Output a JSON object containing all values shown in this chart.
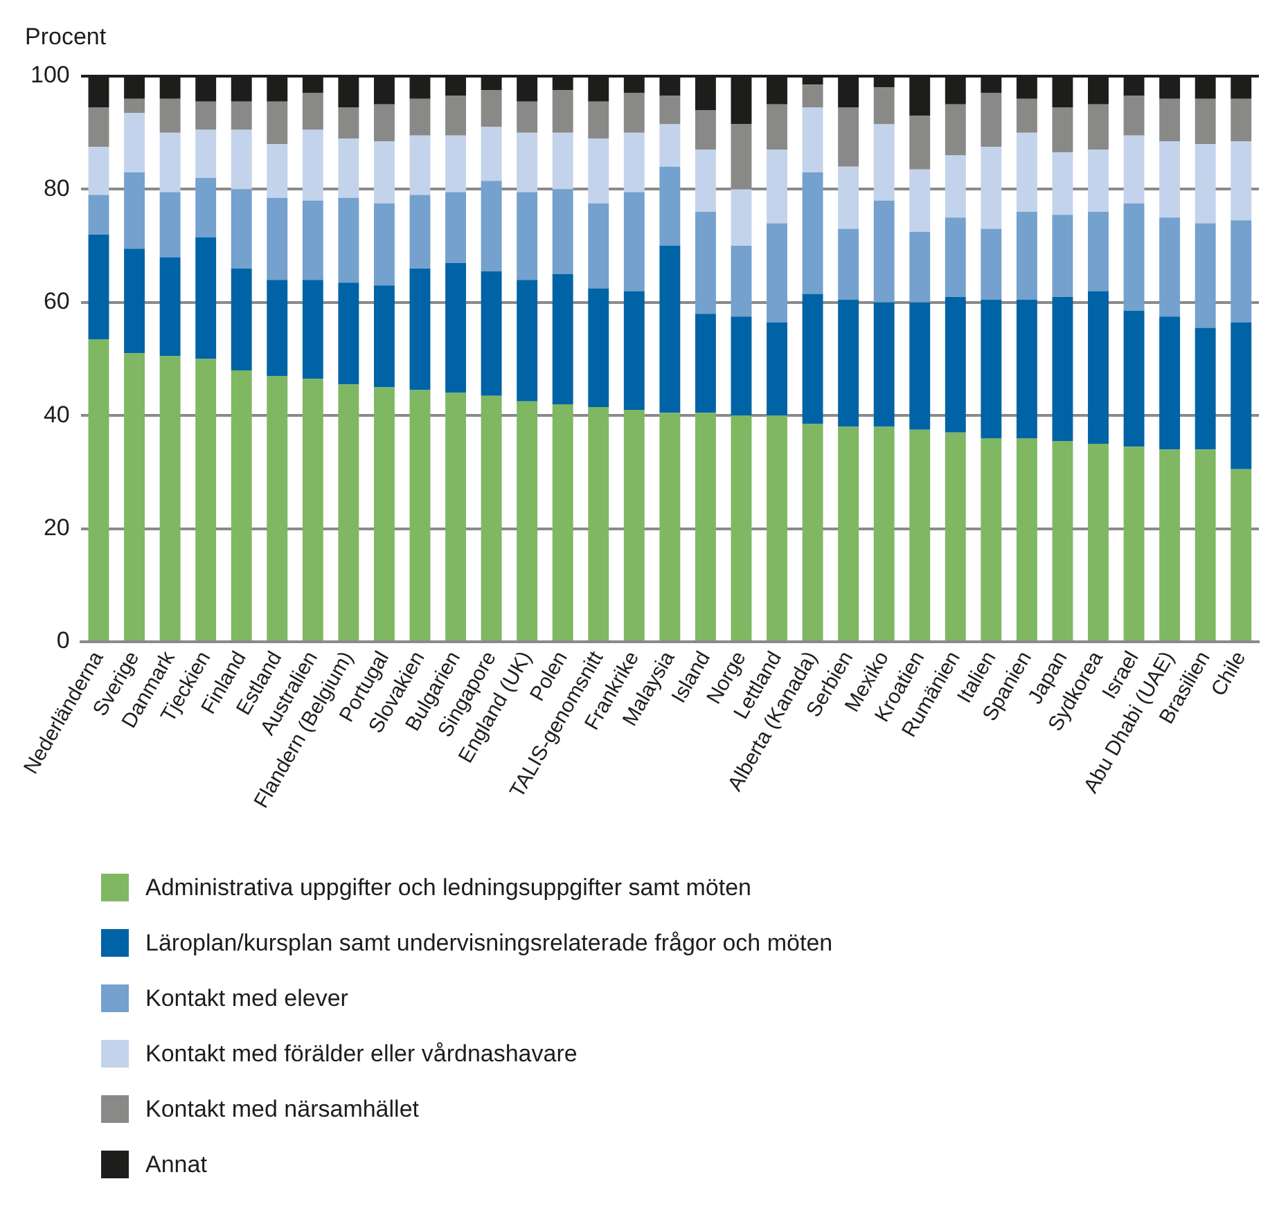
{
  "chart_data": {
    "type": "bar",
    "stacked": true,
    "ylabel": "Procent",
    "categories": [
      "Nederländerna",
      "Sverige",
      "Danmark",
      "Tjeckien",
      "Finland",
      "Estland",
      "Australien",
      "Flandern (Belgium)",
      "Portugal",
      "Slovakien",
      "Bulgarien",
      "Singapore",
      "England (UK)",
      "Polen",
      "TALIS-genomsnitt",
      "Frankrike",
      "Malaysia",
      "Island",
      "Norge",
      "Lettland",
      "Alberta (Kanada)",
      "Serbien",
      "Mexiko",
      "Kroatien",
      "Rumänien",
      "Italien",
      "Spanien",
      "Japan",
      "Sydkorea",
      "Israel",
      "Abu Dhabi (UAE)",
      "Brasilien",
      "Chile"
    ],
    "series": [
      {
        "name": "Administrativa uppgifter och ledningsuppgifter samt möten",
        "color": "#7fb762",
        "values": [
          53.5,
          51,
          50.5,
          50,
          48,
          47,
          46.5,
          45.5,
          45,
          44.5,
          44,
          43.5,
          42.5,
          42,
          41.5,
          41,
          40.5,
          40.5,
          40,
          40,
          38.5,
          38,
          38,
          37.5,
          37,
          36,
          36,
          35.5,
          35,
          34.5,
          34,
          34,
          30.5
        ]
      },
      {
        "name": "Läroplan/kursplan samt undervisningsrelaterade frågor och möten",
        "color": "#0063a6",
        "values": [
          18.5,
          18.5,
          17.5,
          21.5,
          18,
          17,
          17.5,
          18,
          18,
          21.5,
          23,
          22,
          21.5,
          23,
          21,
          21,
          29.5,
          17.5,
          17.5,
          16.5,
          23,
          22.5,
          22,
          22.5,
          24,
          24.5,
          24.5,
          25.5,
          27,
          24,
          23.5,
          21.5,
          26
        ]
      },
      {
        "name": "Kontakt med elever",
        "color": "#74a1cd",
        "values": [
          7,
          13.5,
          11.5,
          10.5,
          14,
          14.5,
          14,
          15,
          14.5,
          13,
          12.5,
          16,
          15.5,
          15,
          15,
          17.5,
          14,
          18,
          12.5,
          17.5,
          21.5,
          12.5,
          18,
          12.5,
          14,
          12.5,
          15.5,
          14.5,
          14,
          19,
          17.5,
          18.5,
          18
        ]
      },
      {
        "name": "Kontakt med förälder eller vårdnashavare",
        "color": "#c3d3ec",
        "values": [
          8.5,
          10.5,
          10.5,
          8.5,
          10.5,
          9.5,
          12.5,
          10.5,
          11,
          10.5,
          10,
          9.5,
          10.5,
          10,
          11.5,
          10.5,
          7.5,
          11,
          10,
          13,
          11.5,
          11,
          13.5,
          11,
          11,
          14.5,
          14,
          11,
          11,
          12,
          13.5,
          14,
          14
        ]
      },
      {
        "name": "Kontakt med närsamhället",
        "color": "#898988",
        "values": [
          7,
          2.5,
          6,
          5,
          5,
          7.5,
          6.5,
          5.5,
          6.5,
          6.5,
          7,
          6.5,
          5.5,
          7.5,
          6.5,
          7,
          5,
          7,
          11.5,
          8,
          4,
          10.5,
          6.5,
          9.5,
          9,
          9.5,
          6,
          8,
          8,
          7,
          7.5,
          8,
          7.5
        ]
      },
      {
        "name": "Annat",
        "color": "#1d1d1b",
        "values": [
          5.5,
          4,
          4,
          4.5,
          4.5,
          4.5,
          3,
          5.5,
          5,
          4,
          3.5,
          2.5,
          4.5,
          2.5,
          4.5,
          3,
          3.5,
          6,
          8.5,
          5,
          1.5,
          5.5,
          2,
          7,
          5,
          3,
          4,
          5.5,
          5,
          3.5,
          4,
          4,
          4
        ]
      }
    ],
    "ylim": [
      0,
      100
    ],
    "yticks": [
      0,
      20,
      40,
      60,
      80,
      100
    ],
    "grid": "y",
    "legend": "bottom left"
  }
}
